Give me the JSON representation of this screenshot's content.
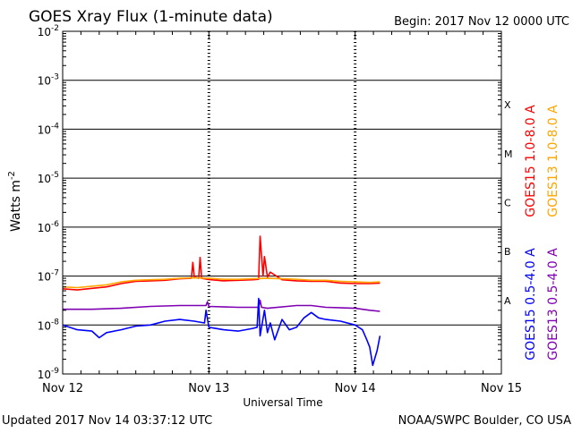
{
  "header": {
    "title": "GOES Xray Flux (1-minute data)",
    "begin": "Begin:  2017 Nov 12 0000 UTC"
  },
  "footer": {
    "updated": "Updated 2017 Nov 14 03:37:12 UTC",
    "credit": "NOAA/SWPC Boulder, CO USA"
  },
  "colors": {
    "goes15_long": "#ff0000",
    "goes13_long": "#ffa500",
    "goes15_short": "#0000ff",
    "goes13_short": "#7f00b2",
    "axis": "#000000"
  },
  "chart_data": {
    "type": "line",
    "title": "GOES Xray Flux (1-minute data)",
    "xlabel": "Universal Time",
    "ylabel_base": "Watts m",
    "ylabel_exp": "-2",
    "yscale": "log",
    "ylim": [
      1e-09,
      0.01
    ],
    "xlim_days": [
      0,
      3
    ],
    "x_ticks": [
      {
        "day": 0,
        "label": "Nov 12"
      },
      {
        "day": 1,
        "label": "Nov 13"
      },
      {
        "day": 2,
        "label": "Nov 14"
      },
      {
        "day": 3,
        "label": "Nov 15"
      }
    ],
    "y_ticks": [
      {
        "exp": -2,
        "base": "10",
        "sup": "-2"
      },
      {
        "exp": -3,
        "base": "10",
        "sup": "-3"
      },
      {
        "exp": -4,
        "base": "10",
        "sup": "-4"
      },
      {
        "exp": -5,
        "base": "10",
        "sup": "-5"
      },
      {
        "exp": -6,
        "base": "10",
        "sup": "-6"
      },
      {
        "exp": -7,
        "base": "10",
        "sup": "-7"
      },
      {
        "exp": -8,
        "base": "10",
        "sup": "-8"
      },
      {
        "exp": -9,
        "base": "10",
        "sup": "-9"
      }
    ],
    "flare_classes": [
      {
        "label": "X",
        "exp": -3.5
      },
      {
        "label": "M",
        "exp": -4.5
      },
      {
        "label": "C",
        "exp": -5.5
      },
      {
        "label": "B",
        "exp": -6.5
      },
      {
        "label": "A",
        "exp": -7.5
      }
    ],
    "legend": [
      {
        "name": "GOES15 1.0-8.0 A",
        "color": "#ff0000",
        "position": "right-upper-1"
      },
      {
        "name": "GOES13 1.0-8.0 A",
        "color": "#ffa500",
        "position": "right-upper-2"
      },
      {
        "name": "GOES15 0.5-4.0 A",
        "color": "#0000ff",
        "position": "right-lower-1"
      },
      {
        "name": "GOES13 0.5-4.0 A",
        "color": "#7f00b2",
        "position": "right-lower-2"
      }
    ],
    "series": [
      {
        "name": "GOES15 1.0-8.0 A",
        "color": "#ff0000",
        "x": [
          0.0,
          0.1,
          0.2,
          0.3,
          0.4,
          0.5,
          0.6,
          0.7,
          0.8,
          0.88,
          0.89,
          0.9,
          0.93,
          0.94,
          0.95,
          1.0,
          1.1,
          1.2,
          1.3,
          1.34,
          1.35,
          1.37,
          1.38,
          1.4,
          1.42,
          1.5,
          1.6,
          1.7,
          1.8,
          1.9,
          2.0,
          2.1,
          2.17
        ],
        "values": [
          5.5e-08,
          5.2e-08,
          5.6e-08,
          6e-08,
          7e-08,
          7.8e-08,
          8e-08,
          8.2e-08,
          8.8e-08,
          9e-08,
          1.9e-07,
          9.5e-08,
          9e-08,
          2.4e-07,
          9e-08,
          8.5e-08,
          8e-08,
          8.2e-08,
          8.4e-08,
          8.6e-08,
          6.5e-07,
          1e-07,
          2.5e-07,
          9.5e-08,
          1.2e-07,
          8.4e-08,
          8e-08,
          7.8e-08,
          7.8e-08,
          7.2e-08,
          7e-08,
          7e-08,
          7.2e-08
        ]
      },
      {
        "name": "GOES13 1.0-8.0 A",
        "color": "#ffa500",
        "x": [
          0.0,
          0.1,
          0.2,
          0.3,
          0.4,
          0.5,
          0.6,
          0.7,
          0.8,
          0.9,
          1.0,
          1.1,
          1.2,
          1.3,
          1.4,
          1.5,
          1.6,
          1.7,
          1.8,
          1.9,
          2.0,
          2.1,
          2.17
        ],
        "values": [
          6e-08,
          5.8e-08,
          6.2e-08,
          6.6e-08,
          7.6e-08,
          8.2e-08,
          8.4e-08,
          8.6e-08,
          9e-08,
          9.2e-08,
          9e-08,
          8.6e-08,
          8.6e-08,
          8.8e-08,
          9e-08,
          8.8e-08,
          8.6e-08,
          8.2e-08,
          8.2e-08,
          7.8e-08,
          7.6e-08,
          7.4e-08,
          7.6e-08
        ]
      },
      {
        "name": "GOES13 0.5-4.0 A",
        "color": "#7f00b2",
        "x": [
          0.0,
          0.2,
          0.4,
          0.6,
          0.8,
          0.98,
          0.99,
          1.0,
          1.2,
          1.34,
          1.35,
          1.36,
          1.4,
          1.6,
          1.7,
          1.8,
          2.0,
          2.1,
          2.17
        ],
        "values": [
          2.1e-08,
          2.1e-08,
          2.2e-08,
          2.4e-08,
          2.5e-08,
          2.5e-08,
          3e-08,
          2.4e-08,
          2.3e-08,
          2.3e-08,
          3.2e-08,
          2.3e-08,
          2.2e-08,
          2.5e-08,
          2.5e-08,
          2.3e-08,
          2.2e-08,
          2e-08,
          1.9e-08
        ]
      },
      {
        "name": "GOES15 0.5-4.0 A",
        "color": "#0000ff",
        "x": [
          0.0,
          0.1,
          0.2,
          0.25,
          0.3,
          0.4,
          0.5,
          0.6,
          0.7,
          0.8,
          0.9,
          0.97,
          0.98,
          1.0,
          1.1,
          1.2,
          1.3,
          1.33,
          1.34,
          1.35,
          1.38,
          1.4,
          1.42,
          1.45,
          1.5,
          1.55,
          1.6,
          1.65,
          1.7,
          1.75,
          1.8,
          1.9,
          2.0,
          2.05,
          2.08,
          2.1,
          2.12,
          2.15,
          2.17
        ],
        "values": [
          1e-08,
          8e-09,
          7.5e-09,
          5.5e-09,
          7e-09,
          8e-09,
          9.5e-09,
          1e-08,
          1.2e-08,
          1.3e-08,
          1.2e-08,
          1.1e-08,
          2e-08,
          9e-09,
          8e-09,
          7.5e-09,
          8.5e-09,
          9e-09,
          3.5e-08,
          6e-09,
          2e-08,
          7e-09,
          1.1e-08,
          5e-09,
          1.3e-08,
          8e-09,
          9e-09,
          1.4e-08,
          1.8e-08,
          1.4e-08,
          1.3e-08,
          1.2e-08,
          1e-08,
          8e-09,
          5e-09,
          3.5e-09,
          1.5e-09,
          3e-09,
          6e-09
        ]
      }
    ]
  }
}
